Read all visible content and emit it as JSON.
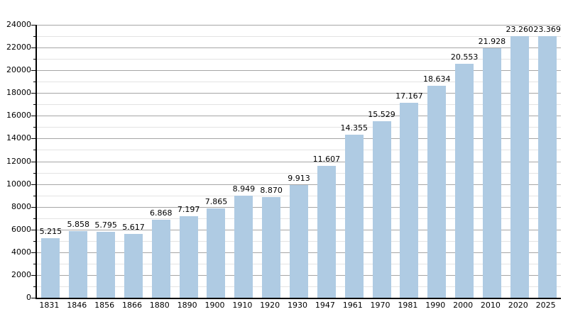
{
  "chart_data": {
    "type": "bar",
    "title": "",
    "xlabel": "",
    "ylabel": "",
    "categories": [
      "1831",
      "1846",
      "1856",
      "1866",
      "1880",
      "1890",
      "1900",
      "1910",
      "1920",
      "1930",
      "1947",
      "1961",
      "1970",
      "1981",
      "1990",
      "2000",
      "2010",
      "2020",
      "2025"
    ],
    "values": [
      5215,
      5858,
      5795,
      5617,
      6868,
      7197,
      7865,
      8949,
      8870,
      9913,
      11607,
      14355,
      15529,
      17167,
      18634,
      20553,
      21928,
      23260,
      23369
    ],
    "bar_labels": [
      "5.215",
      "5.858",
      "5.795",
      "5.617",
      "6.868",
      "7.197",
      "7.865",
      "8.949",
      "8.870",
      "9.913",
      "11.607",
      "14.355",
      "15.529",
      "17.167",
      "18.634",
      "20.553",
      "21.928",
      "23.260",
      "23.369"
    ],
    "ylim": [
      0,
      24000
    ],
    "y_major_step": 2000,
    "y_minor_step": 1000,
    "grid": true,
    "legend": "none",
    "colors": {
      "bar": "#afcbe3",
      "grid_major": "#a6a6a6",
      "grid_minor": "#e3e3e3",
      "axis": "#000000",
      "text": "#000000"
    }
  }
}
